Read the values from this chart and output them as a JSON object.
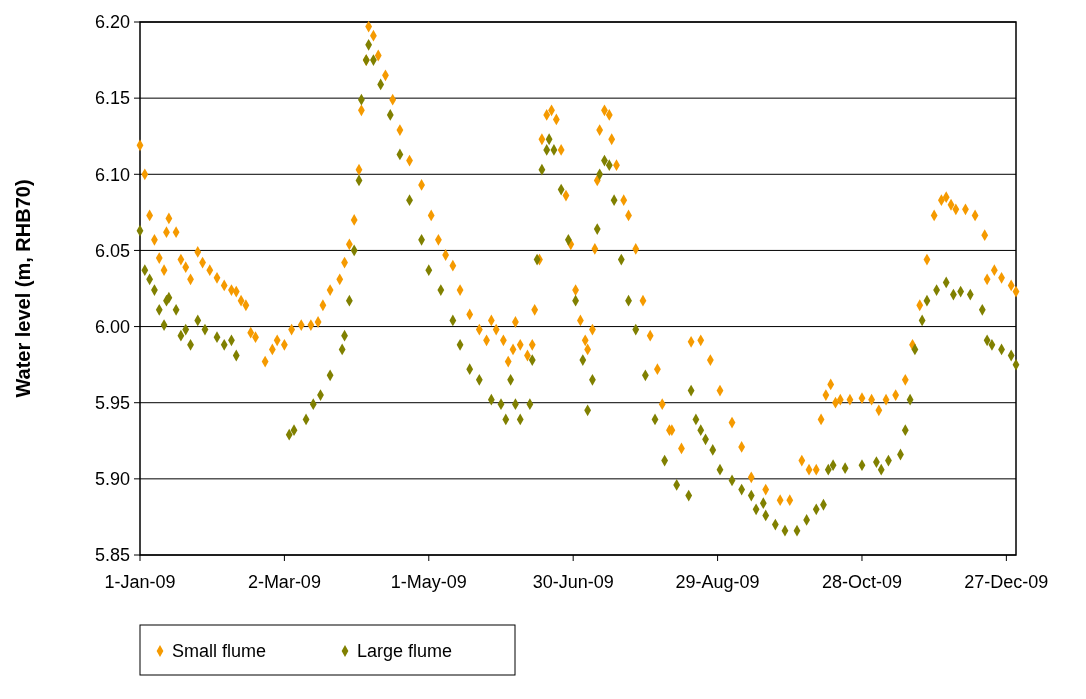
{
  "chart_data": {
    "type": "scatter",
    "ylabel": "Water level (m, RHB70)",
    "xlim": [
      "2009-01-01",
      "2009-12-31"
    ],
    "xticks": [
      {
        "value": "2009-01-01",
        "label": "1-Jan-09"
      },
      {
        "value": "2009-03-02",
        "label": "2-Mar-09"
      },
      {
        "value": "2009-05-01",
        "label": "1-May-09"
      },
      {
        "value": "2009-06-30",
        "label": "30-Jun-09"
      },
      {
        "value": "2009-08-29",
        "label": "29-Aug-09"
      },
      {
        "value": "2009-10-28",
        "label": "28-Oct-09"
      },
      {
        "value": "2009-12-27",
        "label": "27-Dec-09"
      }
    ],
    "ylim": [
      5.85,
      6.2
    ],
    "yticks": [
      {
        "value": 5.85,
        "label": "5.85"
      },
      {
        "value": 5.9,
        "label": "5.90"
      },
      {
        "value": 5.95,
        "label": "5.95"
      },
      {
        "value": 6,
        "label": "6.00"
      },
      {
        "value": 6.05,
        "label": "6.05"
      },
      {
        "value": 6.1,
        "label": "6.10"
      },
      {
        "value": 6.15,
        "label": "6.15"
      },
      {
        "value": 6.2,
        "label": "6.20"
      }
    ],
    "grid": "y",
    "legend": "bottom",
    "marker": "diamond",
    "series": [
      {
        "name": "Small flume",
        "color": "#f59a00",
        "x": [
          "2009-01-01",
          "2009-01-03",
          "2009-01-05",
          "2009-01-07",
          "2009-01-09",
          "2009-01-11",
          "2009-01-12",
          "2009-01-13",
          "2009-01-16",
          "2009-01-18",
          "2009-01-20",
          "2009-01-22",
          "2009-01-25",
          "2009-01-27",
          "2009-01-30",
          "2009-02-02",
          "2009-02-05",
          "2009-02-08",
          "2009-02-10",
          "2009-02-12",
          "2009-02-14",
          "2009-02-16",
          "2009-02-18",
          "2009-02-22",
          "2009-02-25",
          "2009-02-27",
          "2009-03-02",
          "2009-03-05",
          "2009-03-09",
          "2009-03-13",
          "2009-03-16",
          "2009-03-18",
          "2009-03-21",
          "2009-03-25",
          "2009-03-27",
          "2009-03-29",
          "2009-03-31",
          "2009-04-02",
          "2009-04-03",
          "2009-04-05",
          "2009-04-06",
          "2009-04-08",
          "2009-04-10",
          "2009-04-13",
          "2009-04-16",
          "2009-04-19",
          "2009-04-23",
          "2009-04-28",
          "2009-05-02",
          "2009-05-05",
          "2009-05-08",
          "2009-05-11",
          "2009-05-14",
          "2009-05-18",
          "2009-05-22",
          "2009-05-25",
          "2009-05-27",
          "2009-05-29",
          "2009-06-01",
          "2009-06-03",
          "2009-06-05",
          "2009-06-06",
          "2009-06-08",
          "2009-06-11",
          "2009-06-13",
          "2009-06-14",
          "2009-06-16",
          "2009-06-17",
          "2009-06-19",
          "2009-06-21",
          "2009-06-23",
          "2009-06-25",
          "2009-06-27",
          "2009-06-29",
          "2009-07-01",
          "2009-07-03",
          "2009-07-05",
          "2009-07-06",
          "2009-07-08",
          "2009-07-09",
          "2009-07-10",
          "2009-07-11",
          "2009-07-13",
          "2009-07-15",
          "2009-07-16",
          "2009-07-18",
          "2009-07-21",
          "2009-07-23",
          "2009-07-26",
          "2009-07-29",
          "2009-08-01",
          "2009-08-04",
          "2009-08-06",
          "2009-08-09",
          "2009-08-10",
          "2009-08-14",
          "2009-08-18",
          "2009-08-22",
          "2009-08-26",
          "2009-08-30",
          "2009-09-04",
          "2009-09-08",
          "2009-09-12",
          "2009-09-18",
          "2009-09-24",
          "2009-09-28",
          "2009-10-03",
          "2009-10-06",
          "2009-10-09",
          "2009-10-11",
          "2009-10-13",
          "2009-10-15",
          "2009-10-17",
          "2009-10-19",
          "2009-10-23",
          "2009-10-28",
          "2009-11-01",
          "2009-11-04",
          "2009-11-07",
          "2009-11-11",
          "2009-11-15",
          "2009-11-18",
          "2009-11-21",
          "2009-11-24",
          "2009-11-27",
          "2009-11-30",
          "2009-12-02",
          "2009-12-04",
          "2009-12-06",
          "2009-12-10",
          "2009-12-14",
          "2009-12-18",
          "2009-12-19",
          "2009-12-22",
          "2009-12-25",
          "2009-12-29",
          "2009-12-31"
        ],
        "values": [
          6.119,
          6.1,
          6.073,
          6.057,
          6.045,
          6.037,
          6.062,
          6.071,
          6.062,
          6.044,
          6.039,
          6.031,
          6.049,
          6.042,
          6.037,
          6.032,
          6.027,
          6.024,
          6.023,
          6.017,
          6.014,
          5.996,
          5.993,
          5.977,
          5.985,
          5.991,
          5.988,
          5.998,
          6.001,
          6.001,
          6.003,
          6.014,
          6.024,
          6.031,
          6.042,
          6.054,
          6.07,
          6.103,
          6.142,
          6.175,
          6.197,
          6.191,
          6.178,
          6.165,
          6.149,
          6.129,
          6.109,
          6.093,
          6.073,
          6.057,
          6.047,
          6.04,
          6.024,
          6.008,
          5.998,
          5.991,
          6.004,
          5.998,
          5.991,
          5.977,
          5.985,
          6.003,
          5.988,
          5.981,
          5.988,
          6.011,
          6.044,
          6.123,
          6.139,
          6.142,
          6.136,
          6.116,
          6.086,
          6.054,
          6.024,
          6.004,
          5.991,
          5.985,
          5.998,
          6.051,
          6.096,
          6.129,
          6.142,
          6.139,
          6.123,
          6.106,
          6.083,
          6.073,
          6.051,
          6.017,
          5.994,
          5.972,
          5.949,
          5.932,
          5.932,
          5.92,
          5.99,
          5.991,
          5.978,
          5.958,
          5.937,
          5.921,
          5.901,
          5.893,
          5.886,
          5.886,
          5.912,
          5.906,
          5.906,
          5.939,
          5.955,
          5.962,
          5.95,
          5.952,
          5.952,
          5.953,
          5.952,
          5.945,
          5.952,
          5.955,
          5.965,
          5.988,
          6.014,
          6.044,
          6.073,
          6.083,
          6.085,
          6.08,
          6.077,
          6.077,
          6.073,
          6.06,
          6.031,
          6.037,
          6.032,
          6.027,
          6.023
        ]
      },
      {
        "name": "Large flume",
        "color": "#808000",
        "x": [
          "2009-01-01",
          "2009-01-03",
          "2009-01-05",
          "2009-01-07",
          "2009-01-09",
          "2009-01-11",
          "2009-01-12",
          "2009-01-13",
          "2009-01-16",
          "2009-01-18",
          "2009-01-20",
          "2009-01-22",
          "2009-01-25",
          "2009-01-28",
          "2009-02-02",
          "2009-02-05",
          "2009-02-08",
          "2009-02-10",
          "2009-03-04",
          "2009-03-06",
          "2009-03-11",
          "2009-03-14",
          "2009-03-17",
          "2009-03-21",
          "2009-03-26",
          "2009-03-27",
          "2009-03-29",
          "2009-03-31",
          "2009-04-02",
          "2009-04-03",
          "2009-04-05",
          "2009-04-06",
          "2009-04-08",
          "2009-04-11",
          "2009-04-15",
          "2009-04-19",
          "2009-04-23",
          "2009-04-28",
          "2009-05-01",
          "2009-05-06",
          "2009-05-11",
          "2009-05-14",
          "2009-05-18",
          "2009-05-22",
          "2009-05-27",
          "2009-05-31",
          "2009-06-02",
          "2009-06-04",
          "2009-06-06",
          "2009-06-08",
          "2009-06-12",
          "2009-06-13",
          "2009-06-15",
          "2009-06-17",
          "2009-06-19",
          "2009-06-20",
          "2009-06-22",
          "2009-06-25",
          "2009-06-28",
          "2009-07-01",
          "2009-07-04",
          "2009-07-06",
          "2009-07-08",
          "2009-07-10",
          "2009-07-11",
          "2009-07-13",
          "2009-07-15",
          "2009-07-17",
          "2009-07-20",
          "2009-07-23",
          "2009-07-26",
          "2009-07-30",
          "2009-08-03",
          "2009-08-07",
          "2009-08-12",
          "2009-08-17",
          "2009-08-18",
          "2009-08-20",
          "2009-08-22",
          "2009-08-24",
          "2009-08-27",
          "2009-08-30",
          "2009-09-04",
          "2009-09-08",
          "2009-09-12",
          "2009-09-14",
          "2009-09-17",
          "2009-09-18",
          "2009-09-22",
          "2009-09-26",
          "2009-10-01",
          "2009-10-05",
          "2009-10-09",
          "2009-10-12",
          "2009-10-14",
          "2009-10-16",
          "2009-10-21",
          "2009-10-28",
          "2009-11-03",
          "2009-11-05",
          "2009-11-08",
          "2009-11-13",
          "2009-11-15",
          "2009-11-17",
          "2009-11-19",
          "2009-11-22",
          "2009-11-24",
          "2009-11-28",
          "2009-12-02",
          "2009-12-05",
          "2009-12-08",
          "2009-12-12",
          "2009-12-17",
          "2009-12-19",
          "2009-12-21",
          "2009-12-25",
          "2009-12-29",
          "2009-12-31"
        ],
        "values": [
          6.063,
          6.037,
          6.031,
          6.024,
          6.011,
          6.001,
          6.017,
          6.019,
          6.011,
          5.994,
          5.998,
          5.988,
          6.004,
          5.998,
          5.993,
          5.988,
          5.991,
          5.981,
          5.929,
          5.932,
          5.939,
          5.949,
          5.955,
          5.968,
          5.985,
          5.994,
          6.017,
          6.05,
          6.096,
          6.149,
          6.175,
          6.185,
          6.175,
          6.159,
          6.139,
          6.113,
          6.083,
          6.057,
          6.037,
          6.024,
          6.004,
          5.988,
          5.972,
          5.965,
          5.952,
          5.949,
          5.939,
          5.965,
          5.949,
          5.939,
          5.949,
          5.978,
          6.044,
          6.103,
          6.116,
          6.123,
          6.116,
          6.09,
          6.057,
          6.017,
          5.978,
          5.945,
          5.965,
          6.064,
          6.1,
          6.109,
          6.106,
          6.083,
          6.044,
          6.017,
          5.998,
          5.968,
          5.939,
          5.912,
          5.896,
          5.889,
          5.958,
          5.939,
          5.932,
          5.926,
          5.919,
          5.906,
          5.899,
          5.893,
          5.889,
          5.88,
          5.884,
          5.876,
          5.87,
          5.866,
          5.866,
          5.873,
          5.88,
          5.883,
          5.906,
          5.909,
          5.907,
          5.909,
          5.911,
          5.906,
          5.912,
          5.916,
          5.932,
          5.952,
          5.985,
          6.004,
          6.017,
          6.024,
          6.029,
          6.021,
          6.023,
          6.021,
          6.011,
          5.991,
          5.988,
          5.985,
          5.981,
          5.975
        ]
      }
    ]
  }
}
